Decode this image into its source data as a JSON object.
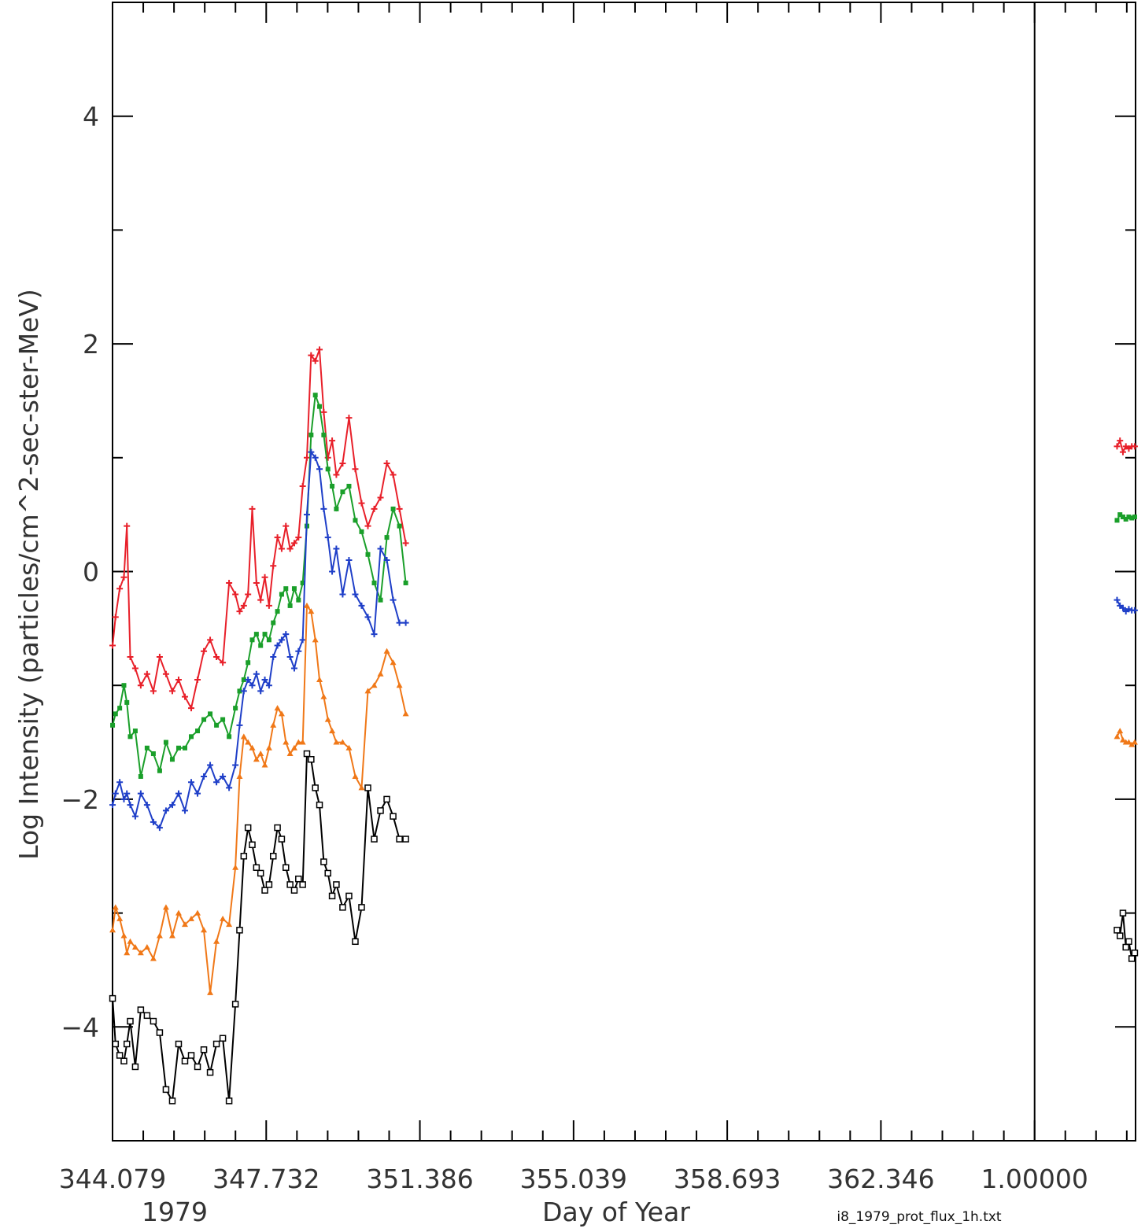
{
  "chart_data": {
    "type": "line",
    "title": "",
    "xlabel": "Day of Year",
    "ylabel": "Log Intensity (particles/cm^2-sec-ster-MeV)",
    "year_label": "1979",
    "file_label": "i8_1979_prot_flux_1h.txt",
    "x_tick_labels": [
      "344.079",
      "347.732",
      "351.386",
      "355.039",
      "358.693",
      "362.346",
      "1.00000"
    ],
    "y_ticks": [
      -4,
      -2,
      0,
      2,
      4
    ],
    "y_tick_labels": [
      "−4",
      "−2",
      "0",
      "2",
      "4"
    ],
    "xlim": [
      344.079,
      368.4
    ],
    "ylim": [
      -5.0,
      5.0
    ],
    "year_boundary_x": 366.0,
    "grid": false,
    "legend": "none",
    "series": [
      {
        "color": "#e8202a",
        "marker": "plus",
        "x": [
          344.08,
          344.15,
          344.25,
          344.35,
          344.42,
          344.5,
          344.62,
          344.75,
          344.9,
          345.05,
          345.2,
          345.35,
          345.5,
          345.65,
          345.8,
          345.95,
          346.1,
          346.25,
          346.4,
          346.55,
          346.7,
          346.85,
          347.0,
          347.1,
          347.2,
          347.3,
          347.4,
          347.5,
          347.6,
          347.7,
          347.8,
          347.9,
          348.0,
          348.1,
          348.2,
          348.3,
          348.4,
          348.5,
          348.6,
          348.7,
          348.8,
          348.9,
          349.0,
          349.1,
          349.2,
          349.3,
          349.4,
          349.55,
          349.7,
          349.85,
          350.0,
          350.15,
          350.3,
          350.45,
          350.6,
          350.75,
          350.9,
          351.05
        ],
        "y": [
          -0.65,
          -0.4,
          -0.15,
          -0.05,
          0.4,
          -0.75,
          -0.85,
          -1.0,
          -0.9,
          -1.05,
          -0.75,
          -0.9,
          -1.05,
          -0.95,
          -1.1,
          -1.2,
          -0.95,
          -0.7,
          -0.6,
          -0.75,
          -0.8,
          -0.1,
          -0.2,
          -0.35,
          -0.3,
          -0.2,
          0.55,
          -0.1,
          -0.25,
          -0.05,
          -0.3,
          0.05,
          0.3,
          0.2,
          0.4,
          0.2,
          0.25,
          0.3,
          0.75,
          1.0,
          1.9,
          1.85,
          1.95,
          1.4,
          1.0,
          1.15,
          0.85,
          0.95,
          1.35,
          0.9,
          0.6,
          0.4,
          0.55,
          0.65,
          0.95,
          0.85,
          0.55,
          0.25
        ]
      },
      {
        "color": "#1a9f2a",
        "marker": "filled-square",
        "x": [
          344.08,
          344.15,
          344.25,
          344.35,
          344.42,
          344.5,
          344.62,
          344.75,
          344.9,
          345.05,
          345.2,
          345.35,
          345.5,
          345.65,
          345.8,
          345.95,
          346.1,
          346.25,
          346.4,
          346.55,
          346.7,
          346.85,
          347.0,
          347.1,
          347.2,
          347.3,
          347.4,
          347.5,
          347.6,
          347.7,
          347.8,
          347.9,
          348.0,
          348.1,
          348.2,
          348.3,
          348.4,
          348.5,
          348.6,
          348.7,
          348.8,
          348.9,
          349.0,
          349.1,
          349.2,
          349.3,
          349.4,
          349.55,
          349.7,
          349.85,
          350.0,
          350.15,
          350.3,
          350.45,
          350.6,
          350.75,
          350.9,
          351.05
        ],
        "y": [
          -1.35,
          -1.25,
          -1.2,
          -1.0,
          -1.15,
          -1.45,
          -1.4,
          -1.8,
          -1.55,
          -1.6,
          -1.75,
          -1.5,
          -1.65,
          -1.55,
          -1.55,
          -1.45,
          -1.4,
          -1.3,
          -1.25,
          -1.35,
          -1.3,
          -1.45,
          -1.2,
          -1.05,
          -0.95,
          -0.8,
          -0.6,
          -0.55,
          -0.65,
          -0.55,
          -0.6,
          -0.45,
          -0.35,
          -0.2,
          -0.15,
          -0.3,
          -0.15,
          -0.25,
          -0.1,
          0.4,
          1.2,
          1.55,
          1.45,
          1.2,
          0.9,
          0.75,
          0.55,
          0.7,
          0.75,
          0.45,
          0.35,
          0.15,
          -0.1,
          -0.25,
          0.3,
          0.55,
          0.4,
          -0.1
        ]
      },
      {
        "color": "#1f3fc8",
        "marker": "plus",
        "x": [
          344.08,
          344.15,
          344.25,
          344.35,
          344.42,
          344.5,
          344.62,
          344.75,
          344.9,
          345.05,
          345.2,
          345.35,
          345.5,
          345.65,
          345.8,
          345.95,
          346.1,
          346.25,
          346.4,
          346.55,
          346.7,
          346.85,
          347.0,
          347.1,
          347.2,
          347.3,
          347.4,
          347.5,
          347.6,
          347.7,
          347.8,
          347.9,
          348.0,
          348.1,
          348.2,
          348.3,
          348.4,
          348.5,
          348.6,
          348.7,
          348.8,
          348.9,
          349.0,
          349.1,
          349.2,
          349.3,
          349.4,
          349.55,
          349.7,
          349.85,
          350.0,
          350.15,
          350.3,
          350.45,
          350.6,
          350.75,
          350.9,
          351.05
        ],
        "y": [
          -2.05,
          -1.95,
          -1.85,
          -2.0,
          -1.95,
          -2.05,
          -2.15,
          -1.95,
          -2.05,
          -2.2,
          -2.25,
          -2.1,
          -2.05,
          -1.95,
          -2.1,
          -1.85,
          -1.95,
          -1.8,
          -1.7,
          -1.85,
          -1.8,
          -1.9,
          -1.7,
          -1.35,
          -1.05,
          -0.95,
          -1.0,
          -0.9,
          -1.05,
          -0.95,
          -1.0,
          -0.75,
          -0.65,
          -0.6,
          -0.55,
          -0.75,
          -0.85,
          -0.7,
          -0.6,
          0.5,
          1.05,
          1.0,
          0.9,
          0.55,
          0.3,
          0.0,
          0.2,
          -0.2,
          0.1,
          -0.2,
          -0.3,
          -0.4,
          -0.55,
          0.2,
          0.1,
          -0.25,
          -0.45,
          -0.45
        ]
      },
      {
        "color": "#f07818",
        "marker": "triangle",
        "x": [
          344.08,
          344.15,
          344.25,
          344.35,
          344.42,
          344.5,
          344.62,
          344.75,
          344.9,
          345.05,
          345.2,
          345.35,
          345.5,
          345.65,
          345.8,
          345.95,
          346.1,
          346.25,
          346.4,
          346.55,
          346.7,
          346.85,
          347.0,
          347.1,
          347.2,
          347.3,
          347.4,
          347.5,
          347.6,
          347.7,
          347.8,
          347.9,
          348.0,
          348.1,
          348.2,
          348.3,
          348.4,
          348.5,
          348.6,
          348.7,
          348.8,
          348.9,
          349.0,
          349.1,
          349.2,
          349.3,
          349.4,
          349.55,
          349.7,
          349.85,
          350.0,
          350.15,
          350.3,
          350.45,
          350.6,
          350.75,
          350.9,
          351.05
        ],
        "y": [
          -3.15,
          -2.95,
          -3.05,
          -3.2,
          -3.35,
          -3.25,
          -3.3,
          -3.35,
          -3.3,
          -3.4,
          -3.2,
          -2.95,
          -3.2,
          -3.0,
          -3.1,
          -3.05,
          -3.0,
          -3.15,
          -3.7,
          -3.25,
          -3.05,
          -3.1,
          -2.6,
          -1.8,
          -1.45,
          -1.5,
          -1.55,
          -1.65,
          -1.6,
          -1.7,
          -1.55,
          -1.35,
          -1.2,
          -1.25,
          -1.5,
          -1.6,
          -1.55,
          -1.5,
          -1.5,
          -0.3,
          -0.35,
          -0.6,
          -0.95,
          -1.1,
          -1.3,
          -1.4,
          -1.5,
          -1.5,
          -1.55,
          -1.8,
          -1.9,
          -1.05,
          -1.0,
          -0.9,
          -0.7,
          -0.8,
          -1.0,
          -1.25
        ]
      },
      {
        "color": "#000000",
        "marker": "open-square",
        "x": [
          344.08,
          344.15,
          344.25,
          344.35,
          344.42,
          344.5,
          344.62,
          344.75,
          344.9,
          345.05,
          345.2,
          345.35,
          345.5,
          345.65,
          345.8,
          345.95,
          346.1,
          346.25,
          346.4,
          346.55,
          346.7,
          346.85,
          347.0,
          347.1,
          347.2,
          347.3,
          347.4,
          347.5,
          347.6,
          347.7,
          347.8,
          347.9,
          348.0,
          348.1,
          348.2,
          348.3,
          348.4,
          348.5,
          348.6,
          348.7,
          348.8,
          348.9,
          349.0,
          349.1,
          349.2,
          349.3,
          349.4,
          349.55,
          349.7,
          349.85,
          350.0,
          350.15,
          350.3,
          350.45,
          350.6,
          350.75,
          350.9,
          351.05
        ],
        "y": [
          -3.75,
          -4.15,
          -4.25,
          -4.3,
          -4.15,
          -3.95,
          -4.35,
          -3.85,
          -3.9,
          -3.95,
          -4.05,
          -4.55,
          -4.65,
          -4.15,
          -4.3,
          -4.25,
          -4.35,
          -4.2,
          -4.4,
          -4.15,
          -4.1,
          -4.65,
          -3.8,
          -3.15,
          -2.5,
          -2.25,
          -2.4,
          -2.6,
          -2.65,
          -2.8,
          -2.75,
          -2.5,
          -2.25,
          -2.35,
          -2.6,
          -2.75,
          -2.8,
          -2.7,
          -2.75,
          -1.6,
          -1.65,
          -1.9,
          -2.05,
          -2.55,
          -2.65,
          -2.85,
          -2.75,
          -2.95,
          -2.85,
          -3.25,
          -2.95,
          -1.9,
          -2.35,
          -2.1,
          -2.0,
          -2.15,
          -2.35,
          -2.35
        ]
      },
      {
        "color": "#e8202a",
        "marker": "plus",
        "x": [
          367.96,
          368.03,
          368.1,
          368.17,
          368.24,
          368.31,
          368.38
        ],
        "y": [
          1.1,
          1.15,
          1.05,
          1.1,
          1.08,
          1.1,
          1.1
        ]
      },
      {
        "color": "#1a9f2a",
        "marker": "filled-square",
        "x": [
          367.96,
          368.03,
          368.1,
          368.17,
          368.24,
          368.31,
          368.38
        ],
        "y": [
          0.45,
          0.5,
          0.48,
          0.46,
          0.48,
          0.47,
          0.48
        ]
      },
      {
        "color": "#1f3fc8",
        "marker": "plus",
        "x": [
          367.96,
          368.03,
          368.1,
          368.17,
          368.24,
          368.31,
          368.38
        ],
        "y": [
          -0.25,
          -0.3,
          -0.32,
          -0.35,
          -0.33,
          -0.34,
          -0.34
        ]
      },
      {
        "color": "#f07818",
        "marker": "triangle",
        "x": [
          367.96,
          368.03,
          368.1,
          368.17,
          368.24,
          368.31,
          368.38
        ],
        "y": [
          -1.45,
          -1.4,
          -1.48,
          -1.5,
          -1.5,
          -1.52,
          -1.5
        ]
      },
      {
        "color": "#000000",
        "marker": "open-square",
        "x": [
          367.96,
          368.03,
          368.1,
          368.17,
          368.24,
          368.31,
          368.38
        ],
        "y": [
          -3.15,
          -3.2,
          -3.0,
          -3.3,
          -3.25,
          -3.4,
          -3.35
        ]
      }
    ]
  }
}
